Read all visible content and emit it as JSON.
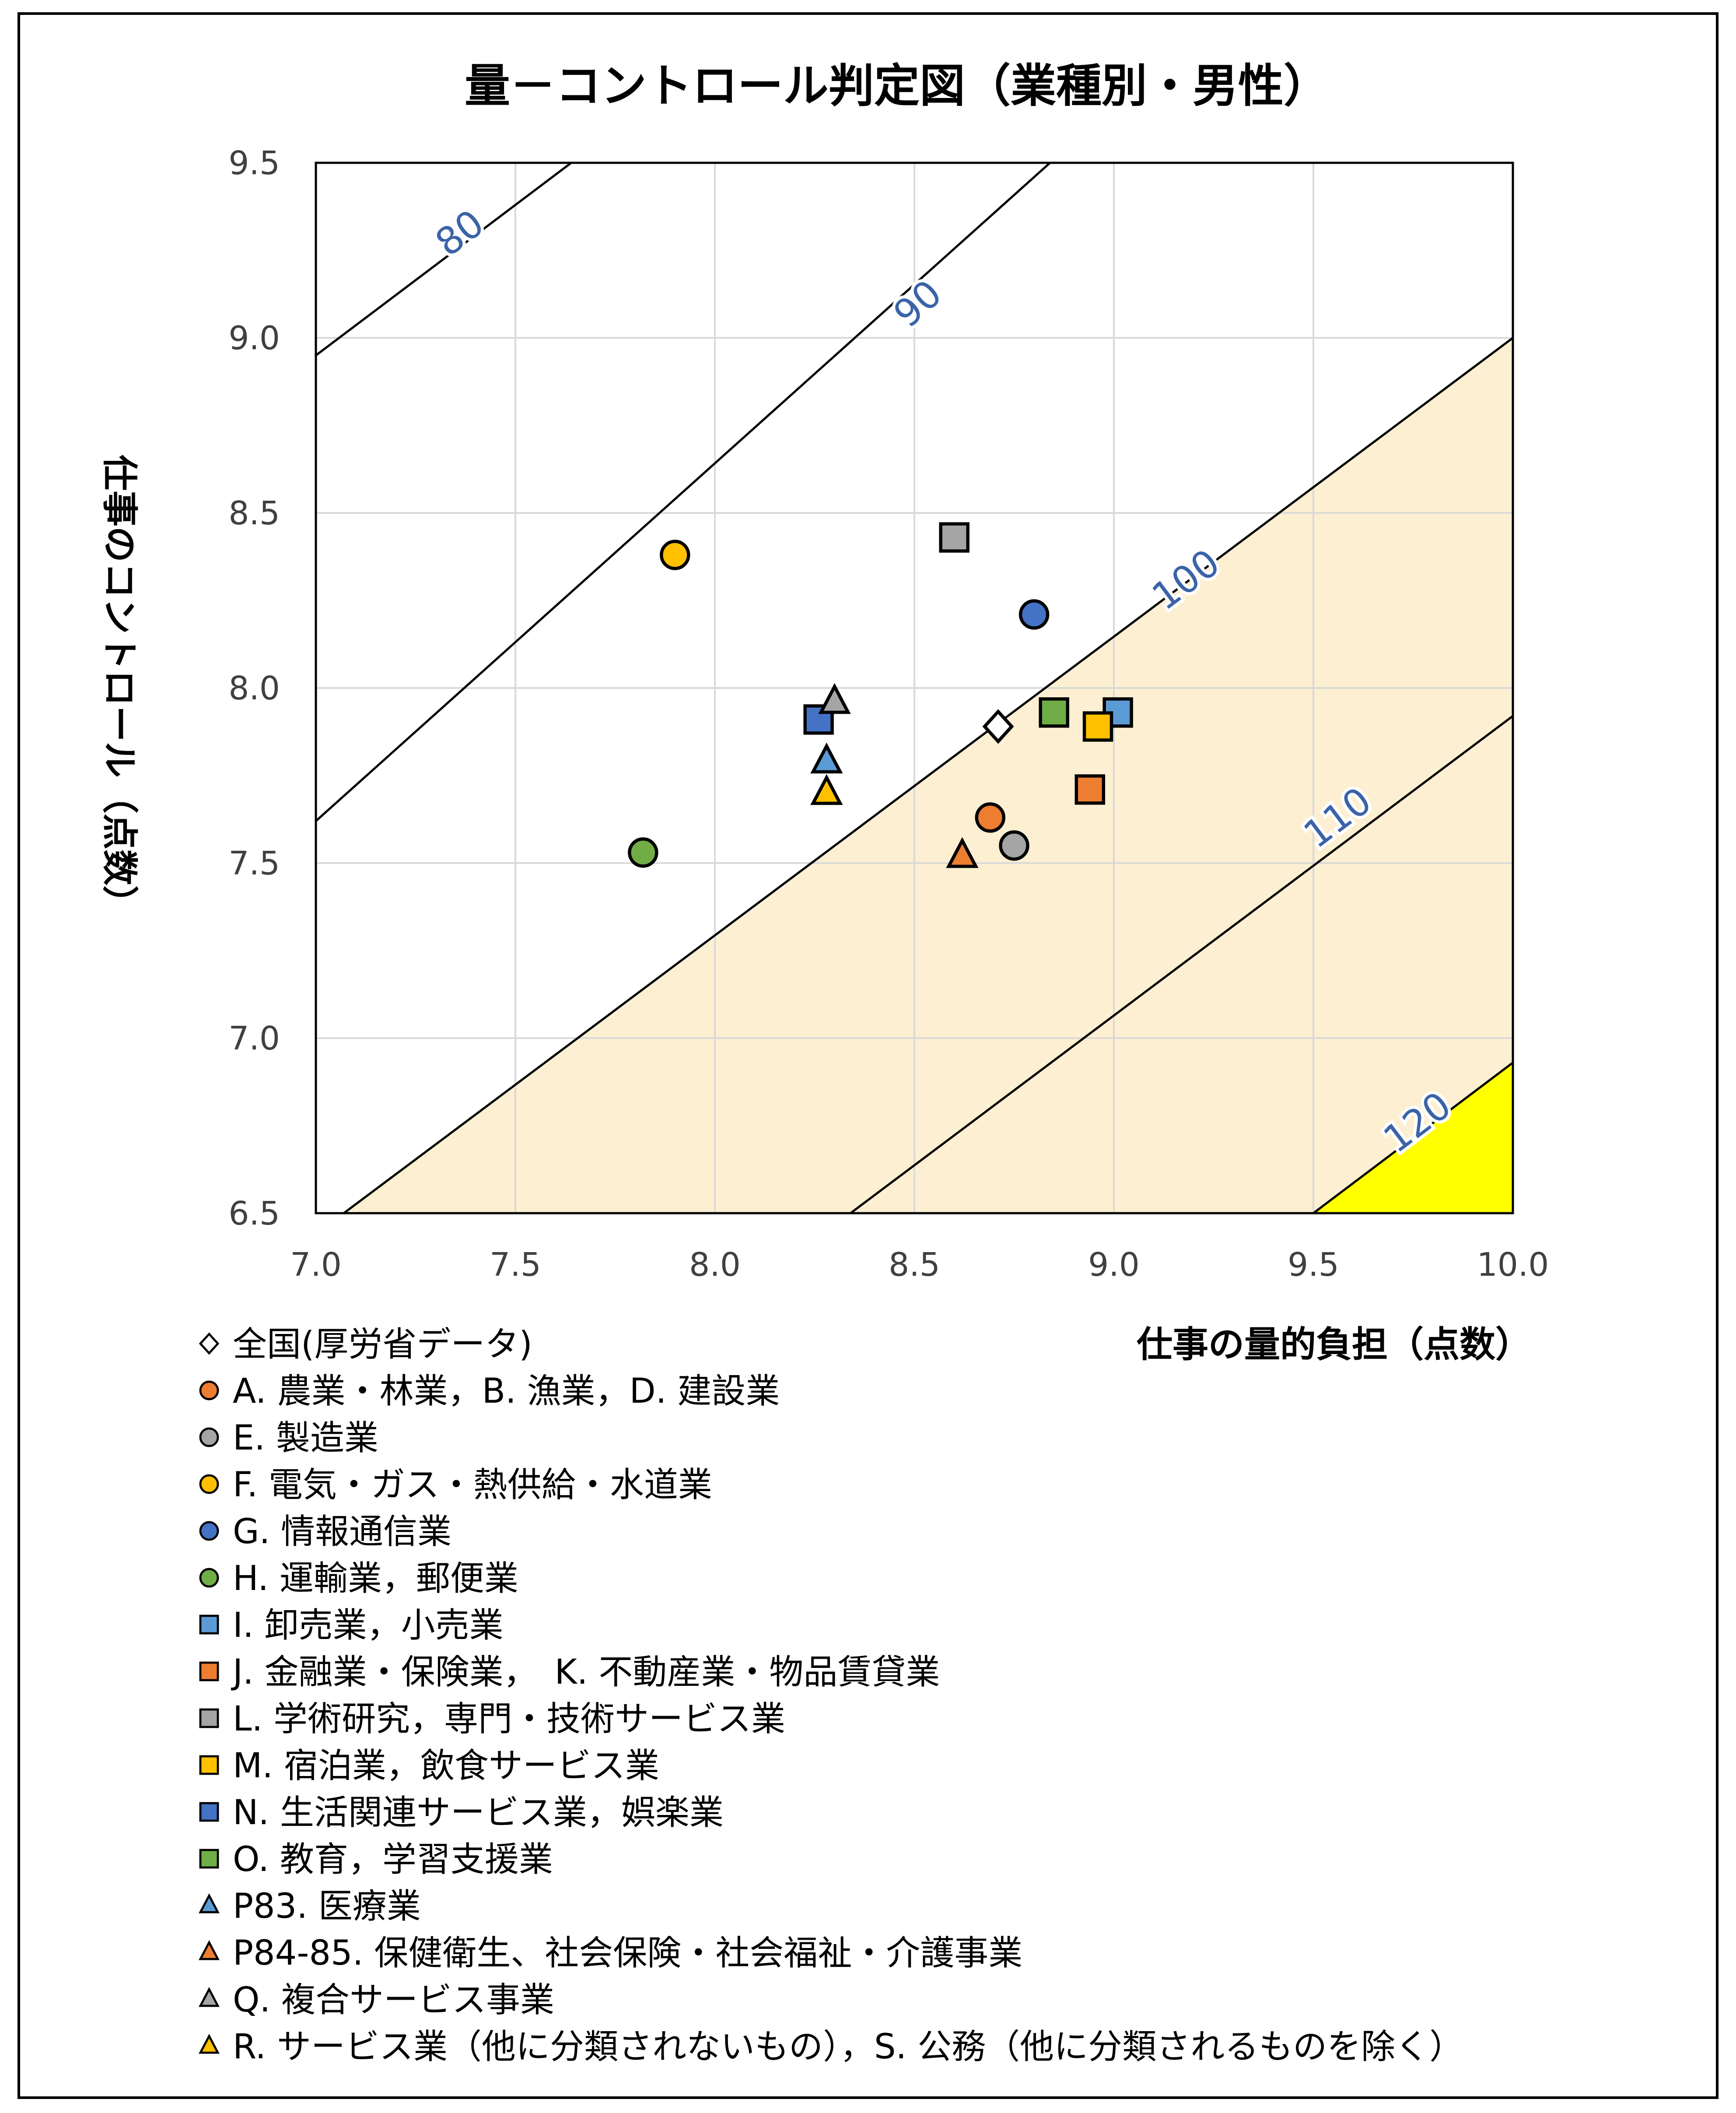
{
  "chart_data": {
    "type": "scatter",
    "title": "量－コントロール判定図（業種別・男性）",
    "xlabel": "仕事の量的負担（点数）",
    "ylabel": "仕事のコントロール（点数）",
    "xlim": [
      7.0,
      10.0
    ],
    "ylim": [
      6.5,
      9.5
    ],
    "x_ticks": [
      "7.0",
      "7.5",
      "8.0",
      "8.5",
      "9.0",
      "9.5",
      "10.0"
    ],
    "y_ticks": [
      "6.5",
      "7.0",
      "7.5",
      "8.0",
      "8.5",
      "9.0",
      "9.5"
    ],
    "grid": true,
    "legend_position": "bottom",
    "contours": [
      {
        "label": "80",
        "points": [
          [
            7.0,
            8.95
          ],
          [
            7.64,
            9.5
          ]
        ]
      },
      {
        "label": "90",
        "points": [
          [
            7.0,
            7.62
          ],
          [
            8.84,
            9.5
          ]
        ]
      },
      {
        "label": "100",
        "points": [
          [
            7.07,
            6.5
          ],
          [
            10.0,
            9.0
          ]
        ]
      },
      {
        "label": "110",
        "points": [
          [
            8.34,
            6.5
          ],
          [
            10.0,
            7.92
          ]
        ]
      },
      {
        "label": "120",
        "points": [
          [
            9.5,
            6.5
          ],
          [
            10.0,
            6.93
          ]
        ]
      }
    ],
    "shaded_regions": [
      {
        "color": "#fdefd2",
        "points": [
          [
            7.07,
            6.5
          ],
          [
            10.0,
            6.5
          ],
          [
            10.0,
            9.0
          ]
        ]
      },
      {
        "color": "#ffff00",
        "points": [
          [
            9.5,
            6.5
          ],
          [
            10.0,
            6.5
          ],
          [
            10.0,
            6.93
          ]
        ]
      }
    ],
    "series": [
      {
        "name": "全国(厚労省データ)",
        "marker": "diamond",
        "color": "#ffffff",
        "x": [
          8.71
        ],
        "y": [
          7.89
        ]
      },
      {
        "name": "A. 農業・林業，B. 漁業，D. 建設業",
        "marker": "circle",
        "color": "#ed7d31",
        "x": [
          8.69
        ],
        "y": [
          7.63
        ]
      },
      {
        "name": "E. 製造業",
        "marker": "circle",
        "color": "#a5a5a5",
        "x": [
          8.75
        ],
        "y": [
          7.55
        ]
      },
      {
        "name": "F. 電気・ガス・熱供給・水道業",
        "marker": "circle",
        "color": "#ffc000",
        "x": [
          7.9
        ],
        "y": [
          8.38
        ]
      },
      {
        "name": "G. 情報通信業",
        "marker": "circle",
        "color": "#4472c4",
        "x": [
          8.8
        ],
        "y": [
          8.21
        ]
      },
      {
        "name": "H. 運輸業，郵便業",
        "marker": "circle",
        "color": "#70ad47",
        "x": [
          7.82
        ],
        "y": [
          7.53
        ]
      },
      {
        "name": "I. 卸売業，小売業",
        "marker": "square",
        "color": "#5b9bd5",
        "x": [
          9.01
        ],
        "y": [
          7.93
        ]
      },
      {
        "name": "J. 金融業・保険業，　K. 不動産業・物品賃貸業",
        "marker": "square",
        "color": "#ed7d31",
        "x": [
          8.94
        ],
        "y": [
          7.71
        ]
      },
      {
        "name": "L. 学術研究，専門・技術サービス業",
        "marker": "square",
        "color": "#a5a5a5",
        "x": [
          8.6
        ],
        "y": [
          8.43
        ]
      },
      {
        "name": "M. 宿泊業，飲食サービス業",
        "marker": "square",
        "color": "#ffc000",
        "x": [
          8.96
        ],
        "y": [
          7.89
        ]
      },
      {
        "name": "N. 生活関連サービス業，娯楽業",
        "marker": "square",
        "color": "#4472c4",
        "x": [
          8.26
        ],
        "y": [
          7.91
        ]
      },
      {
        "name": "O. 教育，学習支援業",
        "marker": "square",
        "color": "#70ad47",
        "x": [
          8.85
        ],
        "y": [
          7.93
        ]
      },
      {
        "name": "P83. 医療業",
        "marker": "triangle",
        "color": "#5b9bd5",
        "x": [
          8.28
        ],
        "y": [
          7.79
        ]
      },
      {
        "name": "P84-85. 保健衛生、社会保険・社会福祉・介護事業",
        "marker": "triangle",
        "color": "#ed7d31",
        "x": [
          8.62
        ],
        "y": [
          7.52
        ]
      },
      {
        "name": "Q. 複合サービス事業",
        "marker": "triangle",
        "color": "#a5a5a5",
        "x": [
          8.3
        ],
        "y": [
          7.96
        ]
      },
      {
        "name": "R. サービス業（他に分類されないもの），S. 公務（他に分類されるものを除く）",
        "marker": "triangle",
        "color": "#ffc000",
        "x": [
          8.28
        ],
        "y": [
          7.7
        ]
      }
    ]
  }
}
